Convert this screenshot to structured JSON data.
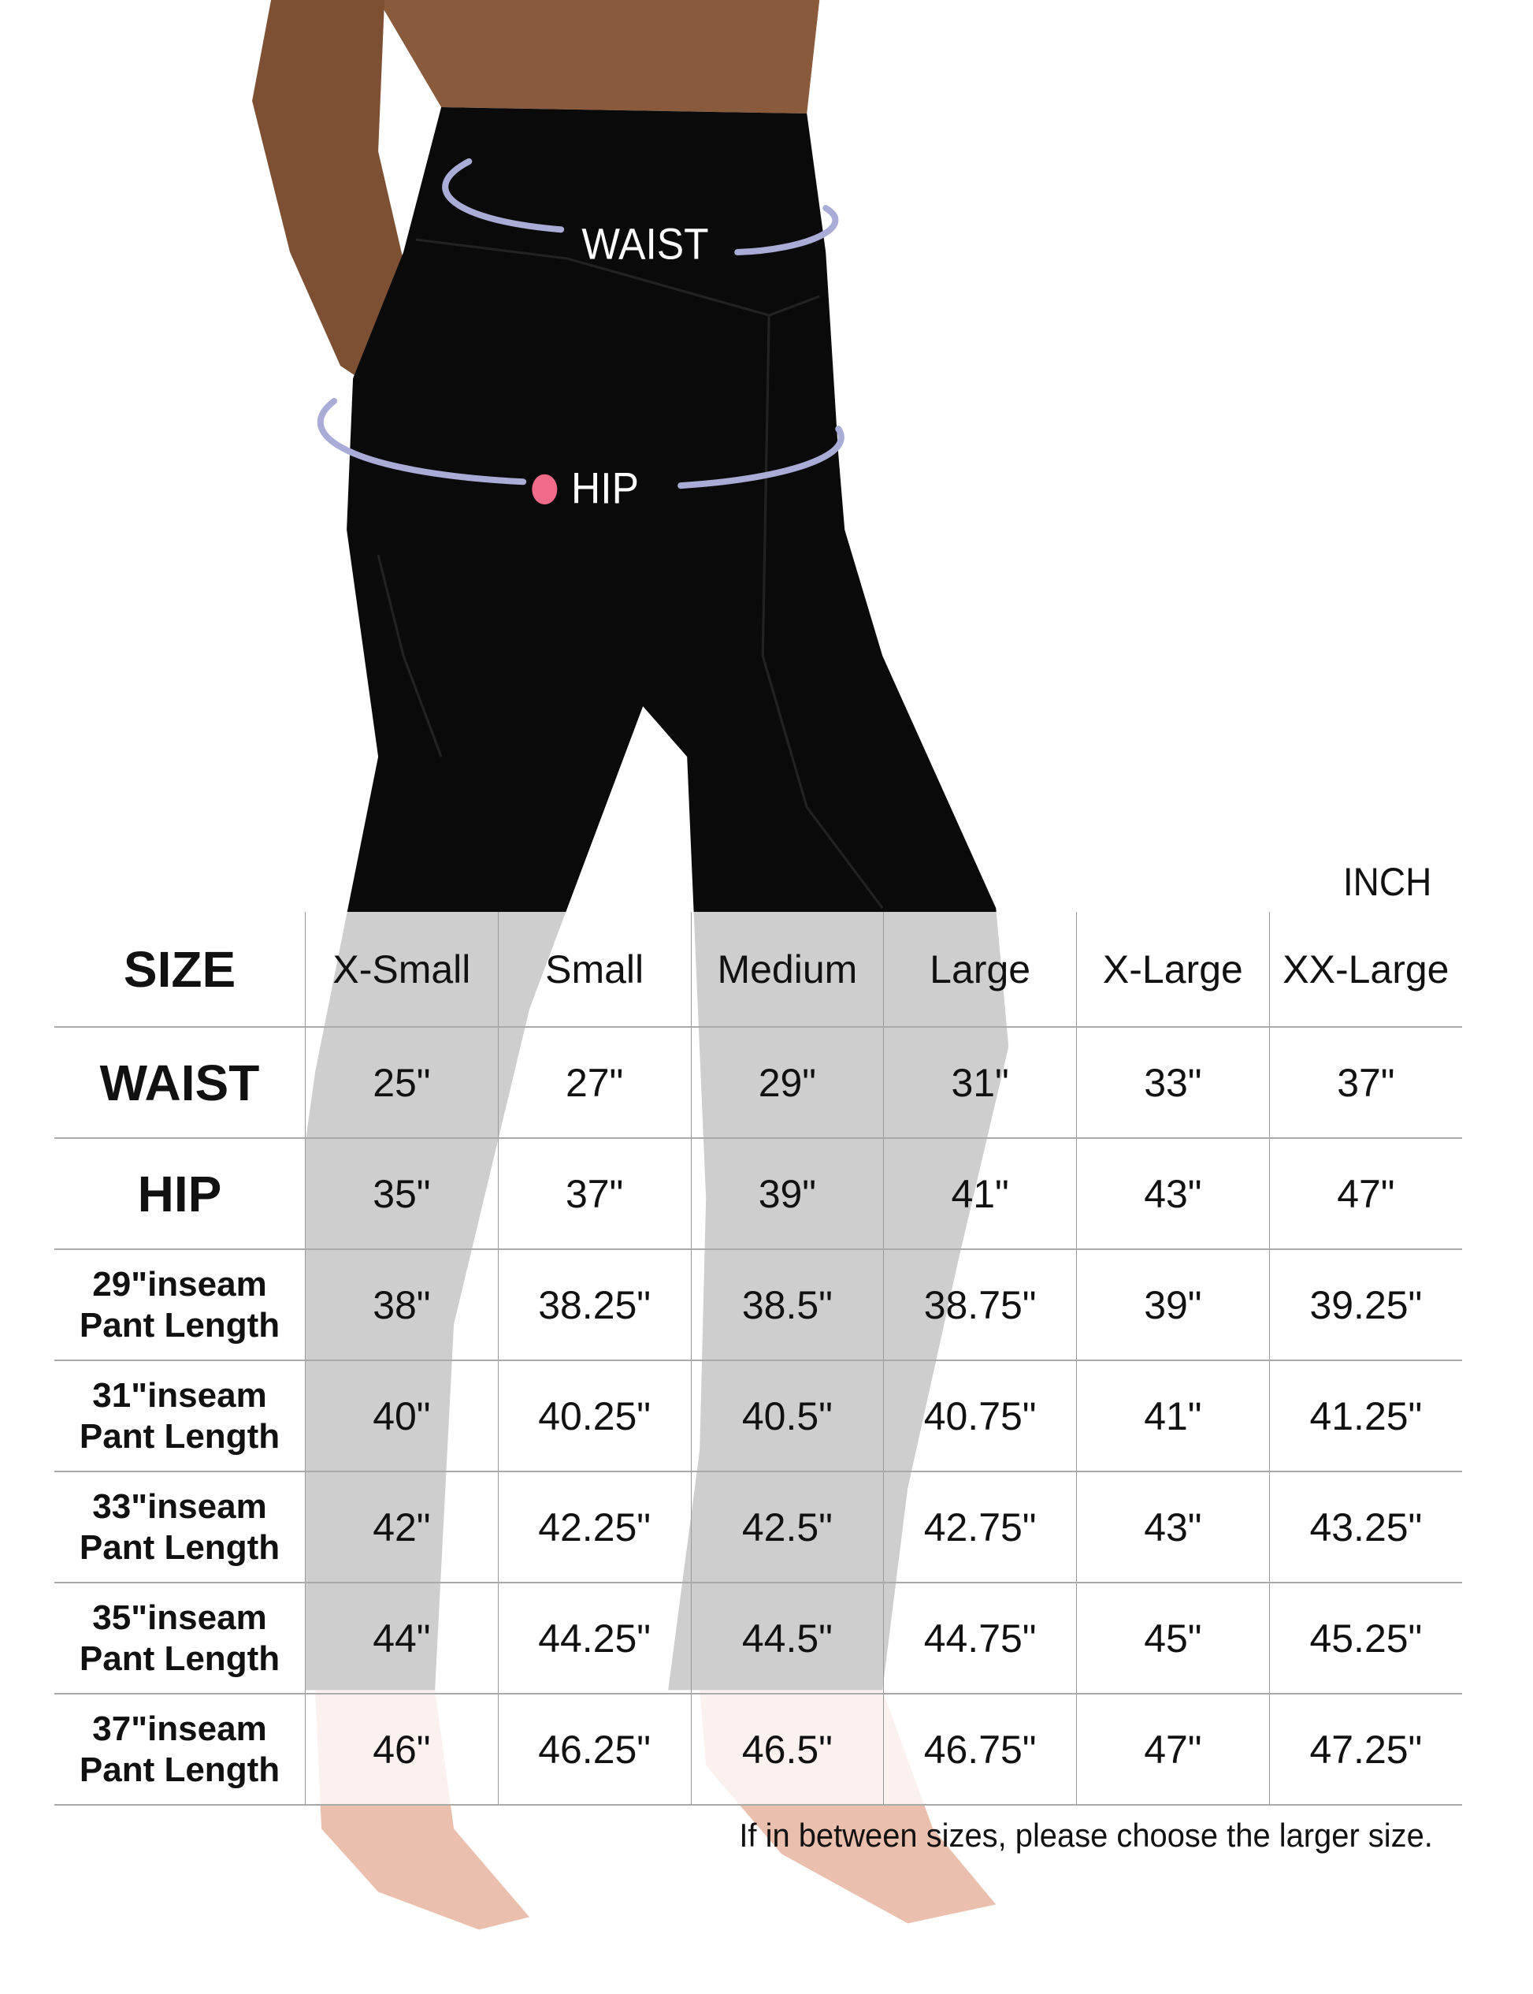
{
  "photo_labels": {
    "waist": "WAIST",
    "hip": "HIP"
  },
  "unit": "INCH",
  "table": {
    "header": {
      "label": "SIZE",
      "sizes": [
        "X-Small",
        "Small",
        "Medium",
        "Large",
        "X-Large",
        "XX-Large"
      ]
    },
    "rows": [
      {
        "label": "WAIST",
        "label2": "",
        "values": [
          "25\"",
          "27\"",
          "29\"",
          "31\"",
          "33\"",
          "37\""
        ]
      },
      {
        "label": "HIP",
        "label2": "",
        "values": [
          "35\"",
          "37\"",
          "39\"",
          "41\"",
          "43\"",
          "47\""
        ]
      },
      {
        "label": "29\"inseam",
        "label2": "Pant Length",
        "values": [
          "38\"",
          "38.25\"",
          "38.5\"",
          "38.75\"",
          "39\"",
          "39.25\""
        ]
      },
      {
        "label": "31\"inseam",
        "label2": "Pant Length",
        "values": [
          "40\"",
          "40.25\"",
          "40.5\"",
          "40.75\"",
          "41\"",
          "41.25\""
        ]
      },
      {
        "label": "33\"inseam",
        "label2": "Pant Length",
        "values": [
          "42\"",
          "42.25\"",
          "42.5\"",
          "42.75\"",
          "43\"",
          "43.25\""
        ]
      },
      {
        "label": "35\"inseam",
        "label2": "Pant Length",
        "values": [
          "44\"",
          "44.25\"",
          "44.5\"",
          "44.75\"",
          "45\"",
          "45.25\""
        ]
      },
      {
        "label": "37\"inseam",
        "label2": "Pant Length",
        "values": [
          "46\"",
          "46.25\"",
          "46.5\"",
          "46.75\"",
          "47\"",
          "47.25\""
        ]
      }
    ]
  },
  "note": "If in between sizes, please choose the larger size.",
  "colors": {
    "pants": "#0a0a0a",
    "skin": "#8a5a3c",
    "measure_line": "#a9acd6"
  }
}
